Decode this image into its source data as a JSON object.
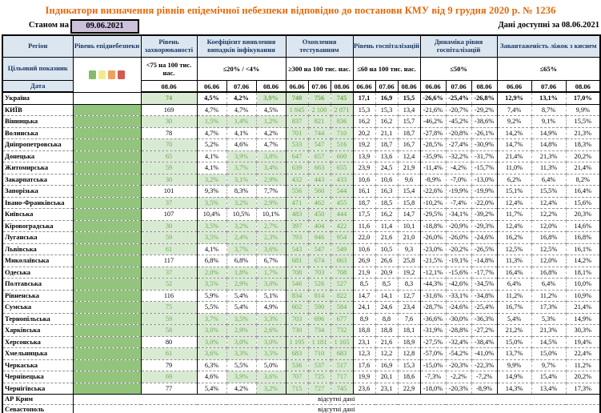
{
  "title": "Індикатори визначення рівнів епідемічної небезпеки відповідно до постанови КМУ від 9 грудня 2020 р. № 1236",
  "as_of": {
    "label": "Станом на",
    "date": "09.06.2021"
  },
  "available": {
    "label": "Дані доступні за",
    "date": "08.06.2021"
  },
  "legend_colors": {
    "green": "#85BB6A",
    "yellow": "#EFEC8D",
    "orange": "#F0A15D",
    "red": "#D15B51"
  },
  "colors": {
    "header_bg": "#DCE6F1",
    "header_text": "#17365D",
    "title_text": "#E3690B",
    "as_of_box_bg": "#CCC0DA",
    "level_column_green": "#93C47D",
    "met_cell_bg": "#D9EAD3",
    "met_cell_text": "#6AA84F"
  },
  "table": {
    "left_header": {
      "region": "Регіон",
      "target": "Цільовий показник",
      "date": "Дата"
    },
    "groups": [
      {
        "label": "Рівень епіднебезпеки"
      },
      {
        "label": "Рівень захворюваності",
        "criterion": "<75 на 100 тис. нас.",
        "dates": [
          "08.06"
        ]
      },
      {
        "label": "Коефіцієнт виявлення випадків інфікування",
        "criterion": "≤20% / <4%",
        "dates": [
          "06.06",
          "07.06",
          "08.06"
        ]
      },
      {
        "label": "Охоплення тестуванням",
        "criterion": "≥300 на 100 тис. нас.",
        "dates": [
          "06.06",
          "07.06",
          "08.06"
        ]
      },
      {
        "label": "Рівень госпіталізацій",
        "criterion": "≤60 на 100 тис. нас.",
        "dates": [
          "06.06",
          "07.06",
          "08.06"
        ]
      },
      {
        "label": "Динаміка рівня госпіталізацій",
        "criterion": "≤50%",
        "dates": [
          "06.06",
          "07.06",
          "08.06"
        ]
      },
      {
        "label": "Завантаженість ліжок з киснем",
        "criterion": "≤65%",
        "dates": [
          "06.06",
          "07.06",
          "08.06"
        ]
      }
    ],
    "no_data_text": "відсутні дані",
    "no_data_rows": [
      "АР Крим",
      "Севастополь"
    ],
    "rows": [
      {
        "name": "Україна",
        "bold": true,
        "level_green": false,
        "values": [
          "74",
          "4,5%",
          "4,2%",
          "3,9%",
          "740",
          "756",
          "745",
          "17,1",
          "16,9",
          "15,5",
          "-26,6%",
          "-25,4%",
          "-26,8%",
          "12,9%",
          "13,1%",
          "17,0%"
        ],
        "green": [
          1,
          0,
          0,
          1,
          1,
          1,
          1,
          0,
          0,
          0,
          0,
          0,
          0,
          0,
          0,
          0
        ]
      },
      {
        "name": "КИЇВ",
        "bold": false,
        "level_green": true,
        "values": [
          "169",
          "4,7%",
          "4,7%",
          "4,5%",
          "1 945",
          "2 100",
          "2 071",
          "15,3",
          "15,3",
          "13,4",
          "-21,6%",
          "-20,7%",
          "-29,2%",
          "7,4%",
          "8,7%",
          "9,9%"
        ],
        "green": [
          0,
          0,
          0,
          0,
          1,
          1,
          1,
          0,
          0,
          0,
          0,
          0,
          0,
          0,
          0,
          0
        ]
      },
      {
        "name": "Вінницька",
        "bold": false,
        "level_green": true,
        "values": [
          "30",
          "1,5%",
          "1,4%",
          "1,2%",
          "837",
          "821",
          "836",
          "16,2",
          "16,2",
          "15,7",
          "-46,2%",
          "-45,2%",
          "-38,6%",
          "9,2%",
          "9,1%",
          "15,5%"
        ],
        "green": [
          1,
          1,
          1,
          1,
          1,
          1,
          1,
          0,
          0,
          0,
          0,
          0,
          0,
          0,
          0,
          0
        ]
      },
      {
        "name": "Волинська",
        "bold": false,
        "level_green": true,
        "values": [
          "78",
          "4,7%",
          "4,1%",
          "4,2%",
          "701",
          "744",
          "710",
          "20,2",
          "21,1",
          "18,7",
          "-27,8%",
          "-20,8%",
          "-26,1%",
          "14,2%",
          "14,9%",
          "21,3%"
        ],
        "green": [
          0,
          0,
          0,
          0,
          1,
          1,
          1,
          0,
          0,
          0,
          0,
          0,
          0,
          0,
          0,
          0
        ]
      },
      {
        "name": "Дніпропетровська",
        "bold": false,
        "level_green": true,
        "values": [
          "70",
          "5,2%",
          "4,6%",
          "4,7%",
          "533",
          "547",
          "516",
          "19,2",
          "18,7",
          "16,7",
          "-28,5%",
          "-27,4%",
          "-30,9%",
          "14,7%",
          "14,8%",
          "18,3%"
        ],
        "green": [
          1,
          0,
          0,
          0,
          1,
          1,
          1,
          0,
          0,
          0,
          0,
          0,
          0,
          0,
          0,
          0
        ]
      },
      {
        "name": "Донецька",
        "bold": false,
        "level_green": true,
        "values": [
          "65",
          "4,1%",
          "3,9%",
          "3,8%",
          "647",
          "657",
          "600",
          "13,9",
          "13,6",
          "12,4",
          "-35,9%",
          "-32,2%",
          "-31,7%",
          "21,4%",
          "21,3%",
          "20,2%"
        ],
        "green": [
          1,
          0,
          1,
          1,
          1,
          1,
          1,
          0,
          0,
          0,
          0,
          0,
          0,
          0,
          0,
          0
        ]
      },
      {
        "name": "Житомирська",
        "bold": false,
        "level_green": true,
        "values": [
          "59",
          "4,1%",
          "3,7%",
          "3,4%",
          "639",
          "663",
          "655",
          "23,9",
          "24,5",
          "21,9",
          "-11,4%",
          "-4,2%",
          "-15,7%",
          "11,0%",
          "11,3%",
          "21,4%"
        ],
        "green": [
          1,
          0,
          1,
          1,
          1,
          1,
          1,
          0,
          0,
          0,
          0,
          0,
          0,
          0,
          0,
          0
        ]
      },
      {
        "name": "Закарпатська",
        "bold": false,
        "level_green": true,
        "values": [
          "30",
          "3,2%",
          "3,1%",
          "2,9%",
          "432",
          "443",
          "433",
          "10,6",
          "10,6",
          "9,6",
          "-8,9%",
          "-7,0%",
          "-13,0%",
          "6,2%",
          "6,4%",
          "8,2%"
        ],
        "green": [
          1,
          1,
          1,
          1,
          1,
          1,
          1,
          0,
          0,
          0,
          0,
          0,
          0,
          0,
          0,
          0
        ]
      },
      {
        "name": "Запорізька",
        "bold": false,
        "level_green": true,
        "values": [
          "101",
          "9,3%",
          "8,3%",
          "7,7%",
          "556",
          "560",
          "544",
          "16,1",
          "16,3",
          "15,4",
          "-22,6%",
          "-19,9%",
          "-19,9%",
          "15,1%",
          "15,5%",
          "16,4%"
        ],
        "green": [
          0,
          0,
          0,
          0,
          1,
          1,
          1,
          0,
          0,
          0,
          0,
          0,
          0,
          0,
          0,
          0
        ]
      },
      {
        "name": "Івано-Франківська",
        "bold": false,
        "level_green": true,
        "values": [
          "37",
          "3,5%",
          "3,2%",
          "2,9%",
          "471",
          "462",
          "455",
          "18,7",
          "18,5",
          "15,8",
          "-10,2%",
          "-7,4%",
          "-22,0%",
          "12,4%",
          "12,4%",
          "15,6%"
        ],
        "green": [
          1,
          1,
          1,
          1,
          1,
          1,
          1,
          0,
          0,
          0,
          0,
          0,
          0,
          0,
          0,
          0
        ]
      },
      {
        "name": "Київська",
        "bold": false,
        "level_green": true,
        "values": [
          "107",
          "10,4%",
          "10,5%",
          "10,1%",
          "483",
          "450",
          "444",
          "17,5",
          "16,2",
          "14,7",
          "-29,5%",
          "-34,1%",
          "-39,2%",
          "11,7%",
          "12,2%",
          "20,3%"
        ],
        "green": [
          0,
          0,
          0,
          0,
          1,
          1,
          1,
          0,
          0,
          0,
          0,
          0,
          0,
          0,
          0,
          0
        ]
      },
      {
        "name": "Кіровоградська",
        "bold": false,
        "level_green": true,
        "values": [
          "30",
          "3,5%",
          "3,2%",
          "2,7%",
          "397",
          "404",
          "422",
          "11,6",
          "11,4",
          "10,1",
          "-18,8%",
          "-20,9%",
          "-29,3%",
          "12,4%",
          "12,0%",
          "14,6%"
        ],
        "green": [
          1,
          1,
          1,
          1,
          1,
          1,
          1,
          0,
          0,
          0,
          0,
          0,
          0,
          0,
          0,
          0
        ]
      },
      {
        "name": "Луганська",
        "bold": false,
        "level_green": true,
        "values": [
          "59",
          "3,5%",
          "2,4%",
          "2,3%",
          "793",
          "946",
          "954",
          "22,0",
          "21,6",
          "21,0",
          "-26,0%",
          "-26,0%",
          "-24,6%",
          "16,2%",
          "16,8%",
          "16,8%"
        ],
        "green": [
          1,
          1,
          1,
          1,
          1,
          1,
          1,
          0,
          0,
          0,
          0,
          0,
          0,
          0,
          0,
          0
        ]
      },
      {
        "name": "Львівська",
        "bold": false,
        "level_green": true,
        "values": [
          "61",
          "4,1%",
          "3,7%",
          "3,6%",
          "543",
          "547",
          "549",
          "10,6",
          "10,5",
          "9,3",
          "-23,0%",
          "-20,2%",
          "-26,5%",
          "12,5%",
          "12,5%",
          "16,1%"
        ],
        "green": [
          1,
          0,
          1,
          1,
          1,
          1,
          1,
          0,
          0,
          0,
          0,
          0,
          0,
          0,
          0,
          0
        ]
      },
      {
        "name": "Миколаївська",
        "bold": false,
        "level_green": true,
        "values": [
          "117",
          "6,8%",
          "6,8%",
          "6,7%",
          "681",
          "674",
          "663",
          "26,9",
          "26,6",
          "25,8",
          "-21,5%",
          "-19,1%",
          "-14,8%",
          "11,3%",
          "12,0%",
          "14,2%"
        ],
        "green": [
          0,
          0,
          0,
          0,
          1,
          1,
          1,
          0,
          0,
          0,
          0,
          0,
          0,
          0,
          0,
          0
        ]
      },
      {
        "name": "Одеська",
        "bold": false,
        "level_green": true,
        "values": [
          "37",
          "2,0%",
          "1,8%",
          "1,7%",
          "708",
          "703",
          "708",
          "21,9",
          "20,9",
          "19,2",
          "-12,1%",
          "-15,6%",
          "-17,7%",
          "16,4%",
          "16,8%",
          "18,1%"
        ],
        "green": [
          1,
          1,
          1,
          1,
          1,
          1,
          1,
          0,
          0,
          0,
          0,
          0,
          0,
          0,
          0,
          0
        ]
      },
      {
        "name": "Полтавська",
        "bold": false,
        "level_green": true,
        "values": [
          "52",
          "3,5%",
          "2,9%",
          "3,0%",
          "546",
          "526",
          "527",
          "8,5",
          "8,5",
          "8,3",
          "-44,3%",
          "-42,6%",
          "-34,5%",
          "6,4%",
          "6,4%",
          "10,0%"
        ],
        "green": [
          1,
          1,
          1,
          1,
          1,
          1,
          1,
          0,
          0,
          0,
          0,
          0,
          0,
          0,
          0,
          0
        ]
      },
      {
        "name": "Рівненська",
        "bold": false,
        "level_green": true,
        "values": [
          "116",
          "5,9%",
          "5,4%",
          "5,1%",
          "834",
          "814",
          "822",
          "14,7",
          "14,1",
          "12,7",
          "-31,6%",
          "-33,1%",
          "-34,8%",
          "11,2%",
          "11,2%",
          "10,9%"
        ],
        "green": [
          0,
          0,
          0,
          0,
          1,
          1,
          1,
          0,
          0,
          0,
          0,
          0,
          0,
          0,
          0,
          0
        ]
      },
      {
        "name": "Сумська",
        "bold": false,
        "level_green": true,
        "values": [
          "75",
          "5,5%",
          "5,4%",
          "4,9%",
          "602",
          "590",
          "584",
          "24,1",
          "24,6",
          "23,4",
          "-28,7%",
          "-24,6%",
          "-25,4%",
          "16,7%",
          "17,3%",
          "21,4%"
        ],
        "green": [
          1,
          0,
          0,
          0,
          1,
          1,
          1,
          0,
          0,
          0,
          0,
          0,
          0,
          0,
          0,
          0
        ]
      },
      {
        "name": "Тернопільська",
        "bold": false,
        "level_green": true,
        "values": [
          "59",
          "3,7%",
          "3,5%",
          "3,3%",
          "703",
          "696",
          "677",
          "8,9",
          "8,8",
          "7,6",
          "-36,6%",
          "-30,0%",
          "-36,3%",
          "5,4%",
          "5,3%",
          "14,9%"
        ],
        "green": [
          1,
          1,
          1,
          1,
          1,
          1,
          1,
          0,
          0,
          0,
          0,
          0,
          0,
          0,
          0,
          0
        ]
      },
      {
        "name": "Харківська",
        "bold": false,
        "level_green": true,
        "values": [
          "58",
          "3,0%",
          "2,9%",
          "2,6%",
          "730",
          "734",
          "732",
          "18,8",
          "18,8",
          "18,1",
          "-31,9%",
          "-28,8%",
          "-27,2%",
          "21,2%",
          "21,3%",
          "30,3%"
        ],
        "green": [
          1,
          1,
          1,
          1,
          1,
          1,
          1,
          0,
          0,
          0,
          0,
          0,
          0,
          0,
          0,
          0
        ]
      },
      {
        "name": "Херсонська",
        "bold": false,
        "level_green": true,
        "values": [
          "80",
          "3,0%",
          "3,0%",
          "3,0%",
          "1 195",
          "1 181",
          "1 165",
          "23,1",
          "21,6",
          "18,9",
          "-27,5%",
          "-32,4%",
          "-38,4%",
          "15,0%",
          "14,5%",
          "19,4%"
        ],
        "green": [
          0,
          1,
          1,
          1,
          1,
          1,
          1,
          0,
          0,
          0,
          0,
          0,
          0,
          0,
          0,
          0
        ]
      },
      {
        "name": "Хмельницька",
        "bold": false,
        "level_green": true,
        "values": [
          "61",
          "3,6%",
          "3,3%",
          "3,5%",
          "683",
          "710",
          "683",
          "12,3",
          "12,2",
          "12,8",
          "-57,0%",
          "-54,2%",
          "-41,0%",
          "13,7%",
          "15,0%",
          "22,4%"
        ],
        "green": [
          1,
          1,
          1,
          1,
          1,
          1,
          1,
          0,
          0,
          0,
          0,
          0,
          0,
          0,
          0,
          0
        ]
      },
      {
        "name": "Черкаська",
        "bold": false,
        "level_green": true,
        "values": [
          "79",
          "6,3%",
          "5,5%",
          "5,0%",
          "536",
          "537",
          "517",
          "17,6",
          "16,9",
          "15,3",
          "-15,0%",
          "-20,3%",
          "-22,3%",
          "9,9%",
          "9,7%",
          "11,2%"
        ],
        "green": [
          0,
          0,
          0,
          0,
          1,
          1,
          1,
          0,
          0,
          0,
          0,
          0,
          0,
          0,
          0,
          0
        ]
      },
      {
        "name": "Чернівецька",
        "bold": false,
        "level_green": true,
        "values": [
          "69",
          "4,6%",
          "3,9%",
          "3,6%",
          "707",
          "725",
          "717",
          "19,9",
          "20,1",
          "18,6",
          "-7,3%",
          "-2,2%",
          "-7,2%",
          "14,9%",
          "15,4%",
          "20,2%"
        ],
        "green": [
          1,
          0,
          1,
          1,
          1,
          1,
          1,
          0,
          0,
          0,
          0,
          0,
          0,
          0,
          0,
          0
        ]
      },
      {
        "name": "Чернігівська",
        "bold": false,
        "level_green": true,
        "values": [
          "77",
          "5,4%",
          "4,2%",
          "3,2%",
          "715",
          "727",
          "745",
          "23,6",
          "23,1",
          "22,9",
          "-18,0%",
          "-20,3%",
          "-8,9%",
          "14,3%",
          "13,4%",
          "17,3%"
        ],
        "green": [
          0,
          0,
          0,
          1,
          1,
          1,
          1,
          0,
          0,
          0,
          0,
          0,
          0,
          0,
          0,
          0
        ]
      }
    ]
  }
}
